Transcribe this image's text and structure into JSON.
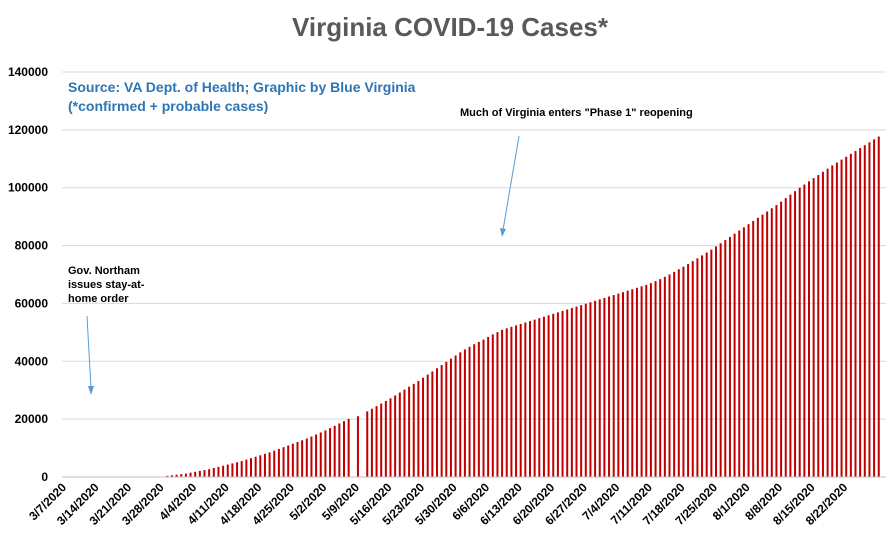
{
  "chart_data": {
    "type": "bar",
    "title": "Virginia COVID-19 Cases*",
    "subtitle_lines": [
      "Source: VA Dept. of Health; Graphic by Blue Virginia",
      "(*confirmed + probable cases)"
    ],
    "xlabel": "",
    "ylabel": "",
    "ylim": [
      0,
      140000
    ],
    "yticks": [
      0,
      20000,
      40000,
      60000,
      80000,
      100000,
      120000,
      140000
    ],
    "ytick_labels": [
      "0",
      "20000",
      "40000",
      "60000",
      "80000",
      "100000",
      "120000",
      "140000"
    ],
    "grid": true,
    "bar_color": "#c00000",
    "x_start_date": "3/7/2020",
    "x_tick_labels": [
      "3/7/2020",
      "3/14/2020",
      "3/21/2020",
      "3/28/2020",
      "4/4/2020",
      "4/11/2020",
      "4/18/2020",
      "4/25/2020",
      "5/2/2020",
      "5/9/2020",
      "5/16/2020",
      "5/23/2020",
      "5/30/2020",
      "6/6/2020",
      "6/13/2020",
      "6/20/2020",
      "6/27/2020",
      "7/4/2020",
      "7/11/2020",
      "7/18/2020",
      "7/25/2020",
      "8/1/2020",
      "8/8/2020",
      "8/15/2020",
      "8/22/2020"
    ],
    "values": [
      0,
      0,
      0,
      0,
      0,
      0,
      0,
      0,
      0,
      0,
      0,
      0,
      0,
      0,
      0,
      0,
      0,
      0,
      0,
      0,
      0,
      0,
      400,
      600,
      800,
      1000,
      1200,
      1500,
      1800,
      2100,
      2400,
      2700,
      3100,
      3500,
      3900,
      4300,
      4700,
      5100,
      5500,
      6000,
      6500,
      7000,
      7500,
      8000,
      8500,
      9100,
      9700,
      10300,
      10900,
      11500,
      12100,
      12700,
      13300,
      14000,
      14700,
      15400,
      16100,
      16900,
      17700,
      18500,
      19300,
      20100,
      0,
      21000,
      0,
      22700,
      23600,
      24500,
      25400,
      26300,
      27200,
      28200,
      29200,
      30200,
      31200,
      32200,
      33200,
      34300,
      35400,
      36500,
      37600,
      38700,
      39800,
      40900,
      42000,
      43100,
      44100,
      45000,
      45900,
      46700,
      47500,
      48400,
      49300,
      50100,
      50900,
      51400,
      51900,
      52400,
      52900,
      53400,
      53900,
      54400,
      54900,
      55400,
      55900,
      56400,
      56900,
      57400,
      57900,
      58400,
      58900,
      59400,
      59900,
      60400,
      60900,
      61400,
      61900,
      62400,
      62900,
      63400,
      63900,
      64400,
      64900,
      65400,
      65900,
      66400,
      67000,
      67700,
      68400,
      69200,
      70000,
      70900,
      71800,
      72700,
      73600,
      74600,
      75600,
      76600,
      77600,
      78600,
      79700,
      80800,
      81900,
      83000,
      84100,
      85200,
      86300,
      87400,
      88500,
      89600,
      90700,
      91800,
      92900,
      94000,
      95200,
      96400,
      97600,
      98800,
      100000,
      101100,
      102200,
      103300,
      104400,
      105500,
      106600,
      107700,
      108700,
      109700,
      110700,
      111700,
      112700,
      113700,
      114700,
      115700,
      116700,
      117700
    ],
    "annotations": [
      {
        "lines": [
          "Gov. Northam",
          "issues stay-at-",
          "home order"
        ]
      },
      {
        "lines": [
          "Much of Virginia enters \"Phase 1\" reopening"
        ]
      }
    ]
  }
}
